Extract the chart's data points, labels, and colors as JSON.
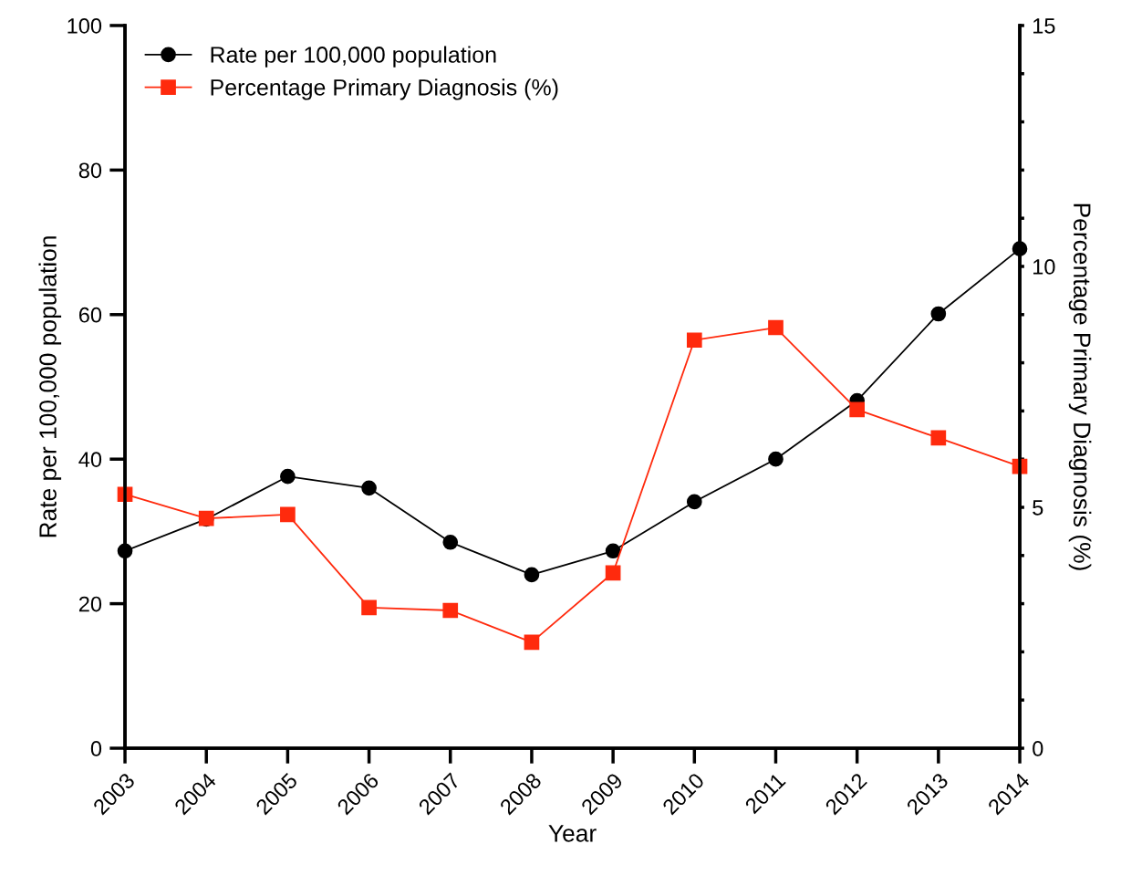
{
  "chart_data": {
    "type": "line",
    "xlabel": "Year",
    "ylabel": "Rate per 100,000 population",
    "y2label": "Percentage Primary Diagnosis (%)",
    "x": [
      2003,
      2004,
      2005,
      2006,
      2007,
      2008,
      2009,
      2010,
      2011,
      2012,
      2013,
      2014
    ],
    "xlim": [
      2003,
      2014
    ],
    "xticks": [
      2003,
      2004,
      2005,
      2006,
      2007,
      2008,
      2009,
      2010,
      2011,
      2012,
      2013,
      2014
    ],
    "ylim": [
      0,
      100
    ],
    "yticks": [
      0,
      20,
      40,
      60,
      80,
      100
    ],
    "y2lim": [
      0,
      15
    ],
    "y2ticks": [
      0,
      {
        "value": 1,
        "label": null
      },
      {
        "value": 2,
        "label": null
      },
      {
        "value": 3,
        "label": null
      },
      {
        "value": 4,
        "label": null
      },
      5,
      {
        "value": 6,
        "label": null
      },
      {
        "value": 7,
        "label": null
      },
      {
        "value": 8,
        "label": null
      },
      {
        "value": 9,
        "label": null
      },
      10,
      {
        "value": 11,
        "label": null
      },
      {
        "value": 12,
        "label": null
      },
      {
        "value": 13,
        "label": null
      },
      {
        "value": 14,
        "label": null
      },
      15
    ],
    "grid": false,
    "legend": "top left",
    "series": [
      {
        "name": "Rate per 100,000 population",
        "color": "#000000",
        "marker": "circle",
        "values": [
          27.3,
          31.7,
          37.6,
          36.0,
          28.5,
          24.0,
          27.3,
          34.1,
          40.0,
          48.1,
          60.1,
          69.1
        ]
      },
      {
        "name": "Percentage Primary Diagnosis (%)",
        "color": "#ff2a0d",
        "marker": "square",
        "axis": "y2",
        "values": [
          5.27,
          4.77,
          4.85,
          2.92,
          2.86,
          2.2,
          3.64,
          8.47,
          8.73,
          7.03,
          6.44,
          5.85
        ]
      }
    ]
  }
}
